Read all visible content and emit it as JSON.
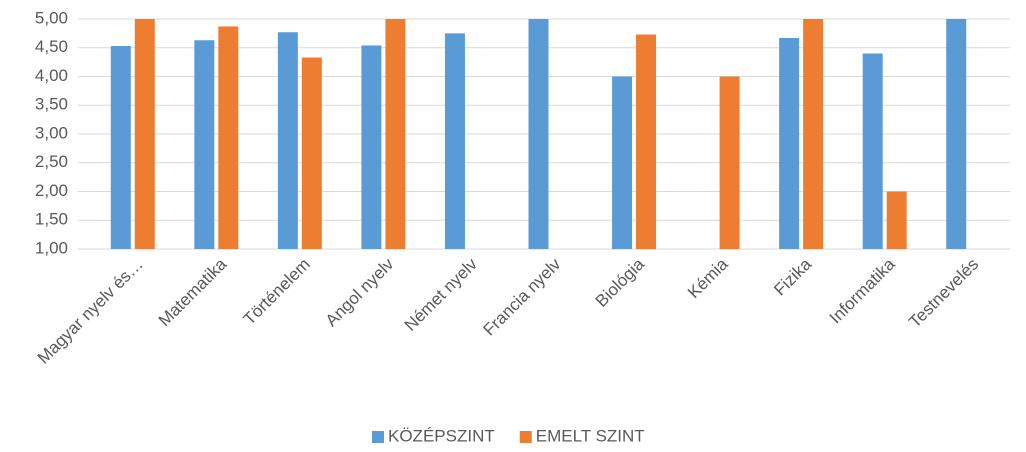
{
  "chart_data": {
    "type": "bar",
    "categories": [
      "Magyar nyelv és…",
      "Matematika",
      "Történelem",
      "Angol nyelv",
      "Német nyelv",
      "Francia nyelv",
      "Biológia",
      "Kémia",
      "Fizika",
      "Informatika",
      "Testnevelés"
    ],
    "series": [
      {
        "name": "KÖZÉPSZINT",
        "color": "#5b9bd5",
        "values": [
          4.53,
          4.63,
          4.77,
          4.54,
          4.75,
          5.0,
          4.0,
          null,
          4.67,
          4.4,
          5.0
        ]
      },
      {
        "name": "EMELT SZINT",
        "color": "#ed7d31",
        "values": [
          5.0,
          4.87,
          4.33,
          5.0,
          null,
          null,
          4.73,
          4.0,
          5.0,
          2.0,
          null
        ]
      }
    ],
    "ylim": [
      1,
      5
    ],
    "yticks": [
      {
        "value": 1,
        "label": "1,00"
      },
      {
        "value": 1.5,
        "label": "1,50"
      },
      {
        "value": 2,
        "label": "2,00"
      },
      {
        "value": 2.5,
        "label": "2,50"
      },
      {
        "value": 3,
        "label": "3,00"
      },
      {
        "value": 3.5,
        "label": "3,50"
      },
      {
        "value": 4,
        "label": "4,00"
      },
      {
        "value": 4.5,
        "label": "4,50"
      },
      {
        "value": 5,
        "label": "5,00"
      }
    ],
    "grid": true,
    "legend": "bottom"
  }
}
